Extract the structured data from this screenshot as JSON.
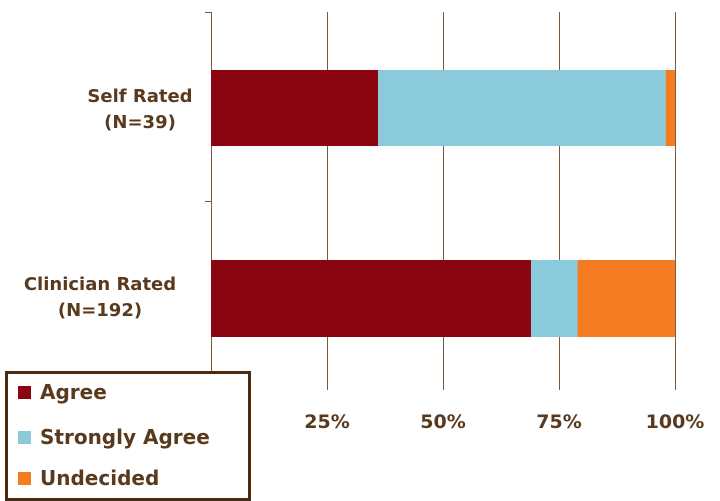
{
  "chart_data": {
    "type": "bar",
    "orientation": "horizontal",
    "stacked": true,
    "categories": [
      {
        "line1": "Self Rated",
        "line2": "(N=39)"
      },
      {
        "line1": "Clinician Rated",
        "line2": "(N=192)"
      }
    ],
    "series": [
      {
        "name": "Agree",
        "color": "#8b0510",
        "values": [
          36,
          69
        ]
      },
      {
        "name": "Strongly Agree",
        "color": "#8bcadb",
        "values": [
          62,
          10
        ]
      },
      {
        "name": "Undecided",
        "color": "#f47b20",
        "values": [
          2,
          21
        ]
      }
    ],
    "xlim": [
      0,
      100
    ],
    "x_ticks": [
      "25%",
      "50%",
      "75%",
      "100%"
    ],
    "x_tick_values": [
      25,
      50,
      75,
      100
    ],
    "grid": true,
    "legend_position": "bottom-left",
    "label_color": "#593a1f",
    "grid_color": "#7a5a3a"
  }
}
